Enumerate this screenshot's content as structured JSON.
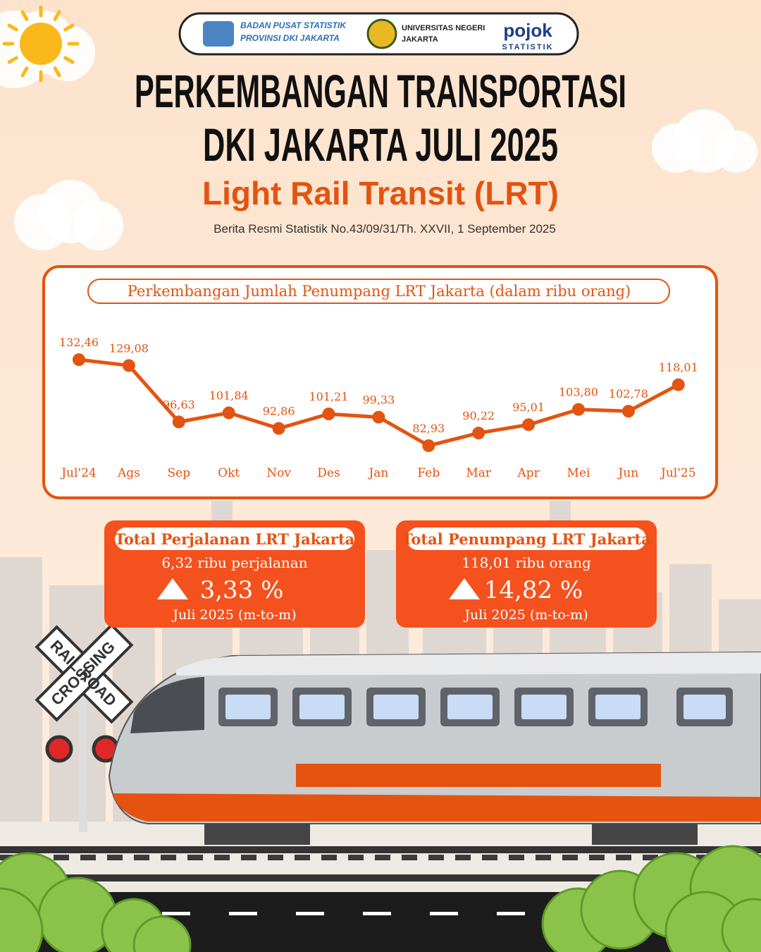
{
  "header": {
    "bps_lines": [
      "BADAN PUSAT STATISTIK",
      "PROVINSI DKI JAKARTA"
    ],
    "unj_lines": [
      "UNIVERSITAS NEGERI",
      "JAKARTA"
    ],
    "pojok_lines": [
      "pojok",
      "STATISTIK"
    ],
    "title_lines": [
      "PERKEMBANGAN TRANSPORTASI",
      "DKI JAKARTA JULI 2025"
    ],
    "subtitle": "Light Rail Transit (LRT)",
    "source": "Berita Resmi Statistik No.43/09/31/Th. XXVII, 1 September 2025"
  },
  "chart_data": {
    "type": "line",
    "title": "Perkembangan Jumlah Penumpang LRT Jakarta (dalam ribu orang)",
    "categories": [
      "Jul'24",
      "Ags",
      "Sep",
      "Okt",
      "Nov",
      "Des",
      "Jan",
      "Feb",
      "Mar",
      "Apr",
      "Mei",
      "Jun",
      "Jul'25"
    ],
    "values": [
      132.46,
      129.08,
      96.63,
      101.84,
      92.86,
      101.21,
      99.33,
      82.93,
      90.22,
      95.01,
      103.8,
      102.78,
      118.01
    ],
    "value_labels": [
      "132,46",
      "129,08",
      "96,63",
      "101,84",
      "92,86",
      "101,21",
      "99,33",
      "82,93",
      "90,22",
      "95,01",
      "103,80",
      "102,78",
      "118,01"
    ],
    "color": "#e4530f"
  },
  "cards": [
    {
      "title": "Total Perjalanan LRT Jakarta",
      "detail": "6,32 ribu perjalanan",
      "change": "3,33 %",
      "period": "Juli 2025 (m-to-m)"
    },
    {
      "title": "Total Penumpang LRT Jakarta",
      "detail": "118,01 ribu orang",
      "change": "14,82 %",
      "period": "Juli 2025 (m-to-m)"
    }
  ],
  "scene": {
    "sign_lines": [
      "RAIL ROAD",
      "CROSSING"
    ]
  }
}
